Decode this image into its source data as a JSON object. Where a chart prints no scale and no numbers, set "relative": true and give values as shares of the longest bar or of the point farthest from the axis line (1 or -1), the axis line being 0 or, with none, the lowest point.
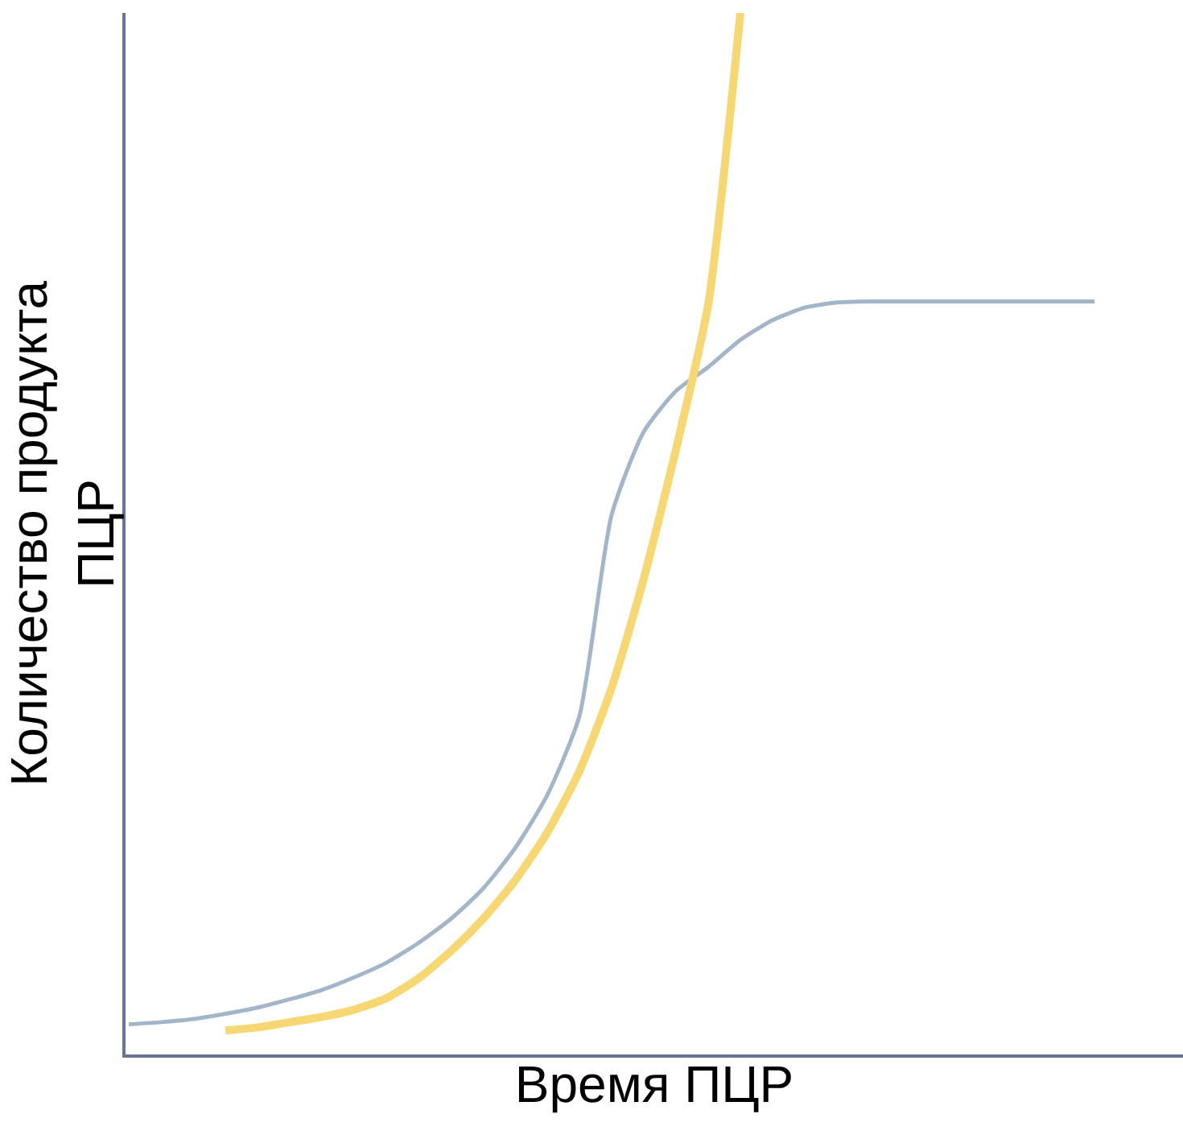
{
  "chart_data": {
    "type": "line",
    "relative": true,
    "xlabel": "Время ПЦР",
    "ylabel": "Количество продукта\nПЦР",
    "marker": "none",
    "line_style": "solid",
    "categories": [
      null,
      null,
      null,
      null,
      null,
      null,
      null,
      null,
      null,
      null,
      null,
      null,
      null,
      null,
      null,
      null,
      null,
      null,
      null,
      null,
      null,
      null,
      null,
      null,
      null,
      null,
      null,
      null,
      null,
      null,
      null
    ],
    "series": [
      {
        "color": "#a3b5c9",
        "values": [
          0.029,
          0.031,
          0.034,
          0.039,
          0.045,
          0.053,
          0.062,
          0.074,
          0.088,
          0.107,
          0.13,
          0.159,
          0.198,
          0.249,
          0.325,
          0.518,
          0.598,
          0.637,
          0.66,
          0.686,
          0.705,
          0.717,
          0.722,
          0.723,
          0.723,
          0.723,
          0.723,
          0.723,
          0.723,
          0.723,
          0.723
        ]
      },
      {
        "color": "#f7d774",
        "values": [
          null,
          null,
          null,
          0.023,
          0.026,
          0.031,
          0.036,
          0.043,
          0.054,
          0.073,
          0.099,
          0.13,
          0.167,
          0.213,
          0.272,
          0.352,
          0.457,
          0.581,
          0.72,
          1,
          null,
          null,
          null,
          null,
          null,
          null,
          null,
          null,
          null,
          null,
          null
        ]
      }
    ]
  }
}
